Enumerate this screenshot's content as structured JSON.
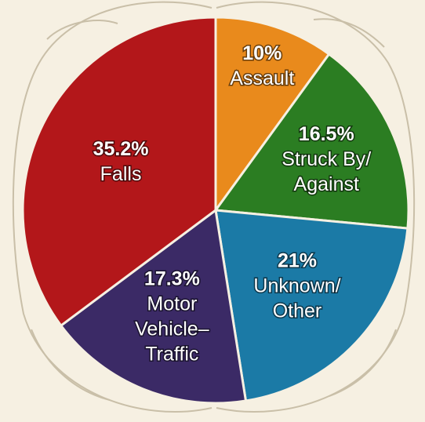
{
  "chart_data": {
    "type": "pie",
    "categories": [
      [
        "Assault"
      ],
      [
        "Struck By/",
        "Against"
      ],
      [
        "Unknown/",
        "Other"
      ],
      [
        "Motor",
        "Vehicle–",
        "Traffic"
      ],
      [
        "Falls"
      ]
    ],
    "values": [
      10,
      16.5,
      21,
      17.3,
      35.2
    ],
    "value_labels": [
      "10%",
      "16.5%",
      "21%",
      "17.3%",
      "35.2%"
    ],
    "colors": [
      "#e98a1c",
      "#2b7d22",
      "#1b7aa6",
      "#3b2a66",
      "#b3171a"
    ]
  }
}
